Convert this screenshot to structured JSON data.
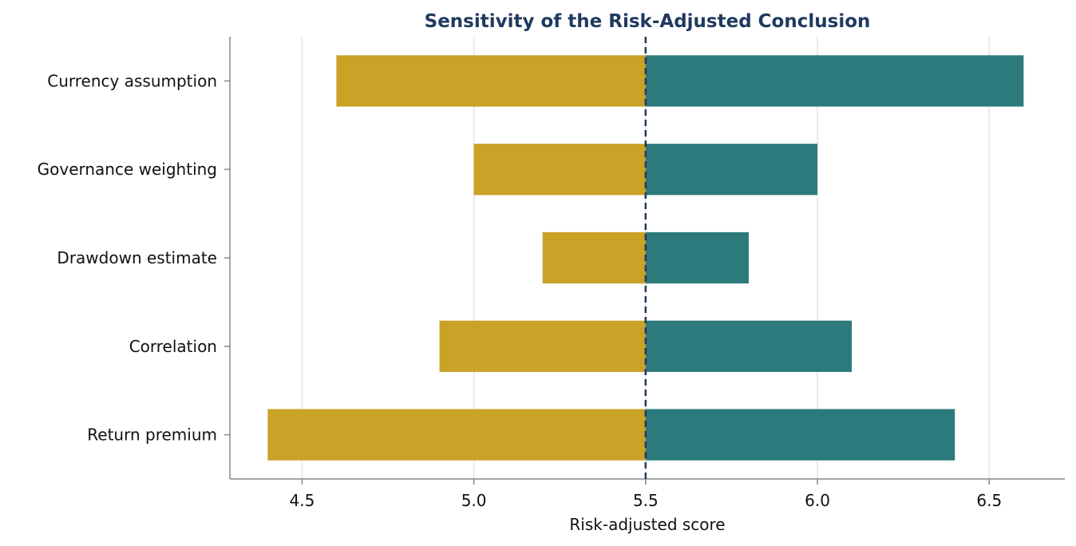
{
  "chart_data": {
    "type": "bar",
    "orientation": "horizontal",
    "title": "Sensitivity of the Risk-Adjusted Conclusion",
    "xlabel": "Risk-adjusted score",
    "ylabel": "",
    "baseline": 5.5,
    "xlim": [
      4.29,
      6.72
    ],
    "xticks": [
      4.5,
      5.0,
      5.5,
      6.0,
      6.5
    ],
    "xtick_labels": [
      "4.5",
      "5.0",
      "5.5",
      "6.0",
      "6.5"
    ],
    "grid": "vertical",
    "categories": [
      "Currency assumption",
      "Governance weighting",
      "Drawdown estimate",
      "Correlation",
      "Return premium"
    ],
    "low": [
      4.6,
      5.0,
      5.2,
      4.9,
      4.4
    ],
    "high": [
      6.6,
      6.0,
      5.8,
      6.1,
      6.4
    ],
    "colors": {
      "low": "#c9a227",
      "high": "#2c7a7b",
      "baseline": "#1f3a5f",
      "grid": "#e3e3e3",
      "axis": "#888888"
    }
  }
}
